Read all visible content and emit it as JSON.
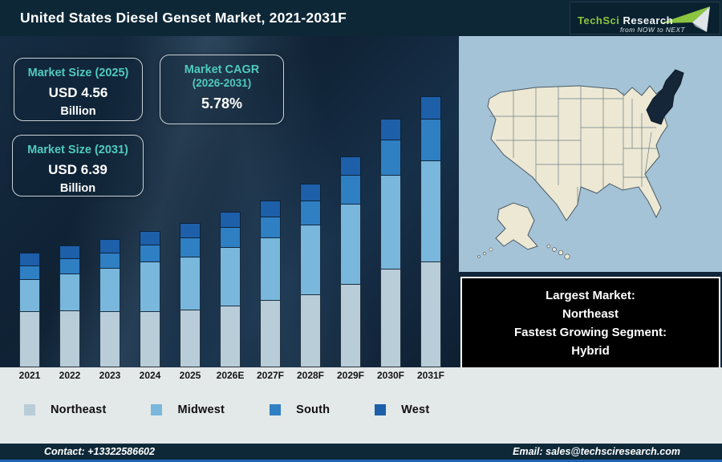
{
  "header": {
    "title": "United States Diesel Genset Market, 2021-2031F",
    "logo": {
      "brand_green": "TechSci",
      "brand_white": "Research",
      "tagline": "from NOW to NEXT"
    }
  },
  "stats": {
    "box1": {
      "label": "Market Size (2025)",
      "value": "USD 4.56",
      "unit": "Billion"
    },
    "box2": {
      "label": "Market CAGR",
      "sublabel": "(2026-2031)",
      "value": "5.78%"
    },
    "box3": {
      "label": "Market Size (2031)",
      "value": "USD 6.39",
      "unit": "Billion"
    }
  },
  "chart_data": {
    "type": "bar",
    "stacked": true,
    "title": "United States Diesel Genset Market, 2021-2031F",
    "categories": [
      "2021",
      "2022",
      "2023",
      "2024",
      "2025",
      "2026E",
      "2027F",
      "2028F",
      "2029F",
      "2030F",
      "2031F"
    ],
    "series": [
      {
        "name": "Northeast",
        "color": "#b9cdd8",
        "values": [
          69,
          70,
          69,
          69,
          71,
          76,
          83,
          90,
          103,
          122,
          131
        ]
      },
      {
        "name": "Midwest",
        "color": "#79b7dc",
        "values": [
          40,
          46,
          54,
          62,
          66,
          73,
          78,
          87,
          100,
          117,
          126
        ]
      },
      {
        "name": "South",
        "color": "#2f7fc3",
        "values": [
          17,
          19,
          19,
          21,
          24,
          25,
          26,
          30,
          36,
          44,
          52
        ]
      },
      {
        "name": "West",
        "color": "#1d5fa9",
        "values": [
          17,
          17,
          18,
          18,
          19,
          20,
          21,
          22,
          24,
          27,
          29
        ]
      }
    ],
    "value_unit": "relative bar height in px (chart has no visible y-axis)",
    "annotations": {
      "market_size_2025_usd_billion": 4.56,
      "market_size_2031_usd_billion": 6.39,
      "cagr_2026_2031_percent": 5.78
    },
    "legend_position": "bottom",
    "grid": false
  },
  "legend": [
    {
      "label": "Northeast",
      "color": "#b9cdd8"
    },
    {
      "label": "Midwest",
      "color": "#79b7dc"
    },
    {
      "label": "South",
      "color": "#2f7fc3"
    },
    {
      "label": "West",
      "color": "#1d5fa9"
    }
  ],
  "map": {
    "highlighted_region": "Northeast",
    "land_color": "#ece8d3",
    "water_color": "#a5c3d6",
    "highlight_color": "#152638"
  },
  "callout": {
    "lines": [
      "Largest Market:",
      "Northeast",
      "Fastest Growing Segment:",
      "Hybrid"
    ]
  },
  "footer": {
    "contact": "Contact: +13322586602",
    "email": "Email: sales@techsciresearch.com"
  },
  "colors": {
    "header_bg": "#0d2737",
    "chart_bg": "#12263a",
    "accent_teal": "#4fcbbd",
    "logo_green": "#8bc53f",
    "band_bg": "#e3e8e8",
    "footer_bg": "#0e2838",
    "bottom_accent": "#1f64b0"
  }
}
